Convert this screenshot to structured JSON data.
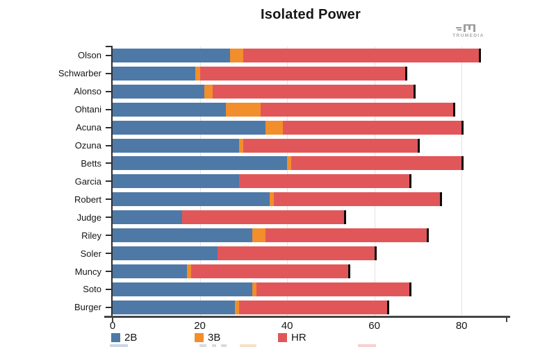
{
  "title": "Isolated Power",
  "brand": {
    "name": "TRUMEDIA"
  },
  "legend": {
    "items": [
      {
        "label": "2B",
        "color": "#4e79a7"
      },
      {
        "label": "3B",
        "color": "#f28e2b"
      },
      {
        "label": "HR",
        "color": "#e15759"
      }
    ],
    "position": "bottom"
  },
  "x_axis": {
    "ticks": [
      0,
      20,
      40,
      60,
      80
    ],
    "max": 90.4
  },
  "colors": {
    "doubles": "#4e79a7",
    "triples": "#f28e2b",
    "home_runs": "#e15759",
    "total_marker": "#0b0b0b",
    "grid": "#e2e2e2",
    "axis": "#454545"
  },
  "chart_data": {
    "type": "bar",
    "orientation": "horizontal",
    "stacked": true,
    "title": "Isolated Power",
    "xlabel": "",
    "ylabel": "",
    "xlim": [
      0,
      90.4
    ],
    "grid": true,
    "legend_position": "bottom",
    "categories": [
      "Olson",
      "Schwarber",
      "Alonso",
      "Ohtani",
      "Acuna",
      "Ozuna",
      "Betts",
      "Garcia",
      "Robert",
      "Judge",
      "Riley",
      "Soler",
      "Muncy",
      "Soto",
      "Burger"
    ],
    "series": [
      {
        "name": "2B",
        "color": "#4e79a7",
        "values": [
          27,
          19,
          21,
          26,
          35,
          29,
          40,
          29,
          36,
          16,
          32,
          24,
          17,
          32,
          28
        ]
      },
      {
        "name": "3B",
        "color": "#f28e2b",
        "values": [
          3,
          1,
          2,
          8,
          4,
          1,
          1,
          0,
          1,
          0,
          3,
          0,
          1,
          1,
          1
        ]
      },
      {
        "name": "HR",
        "color": "#e15759",
        "values": [
          54,
          47,
          46,
          44,
          41,
          40,
          39,
          39,
          38,
          37,
          37,
          36,
          36,
          35,
          34
        ]
      }
    ],
    "totals": [
      84,
      67,
      69,
      78,
      80,
      70,
      80,
      68,
      75,
      53,
      72,
      60,
      54,
      68,
      63
    ]
  }
}
